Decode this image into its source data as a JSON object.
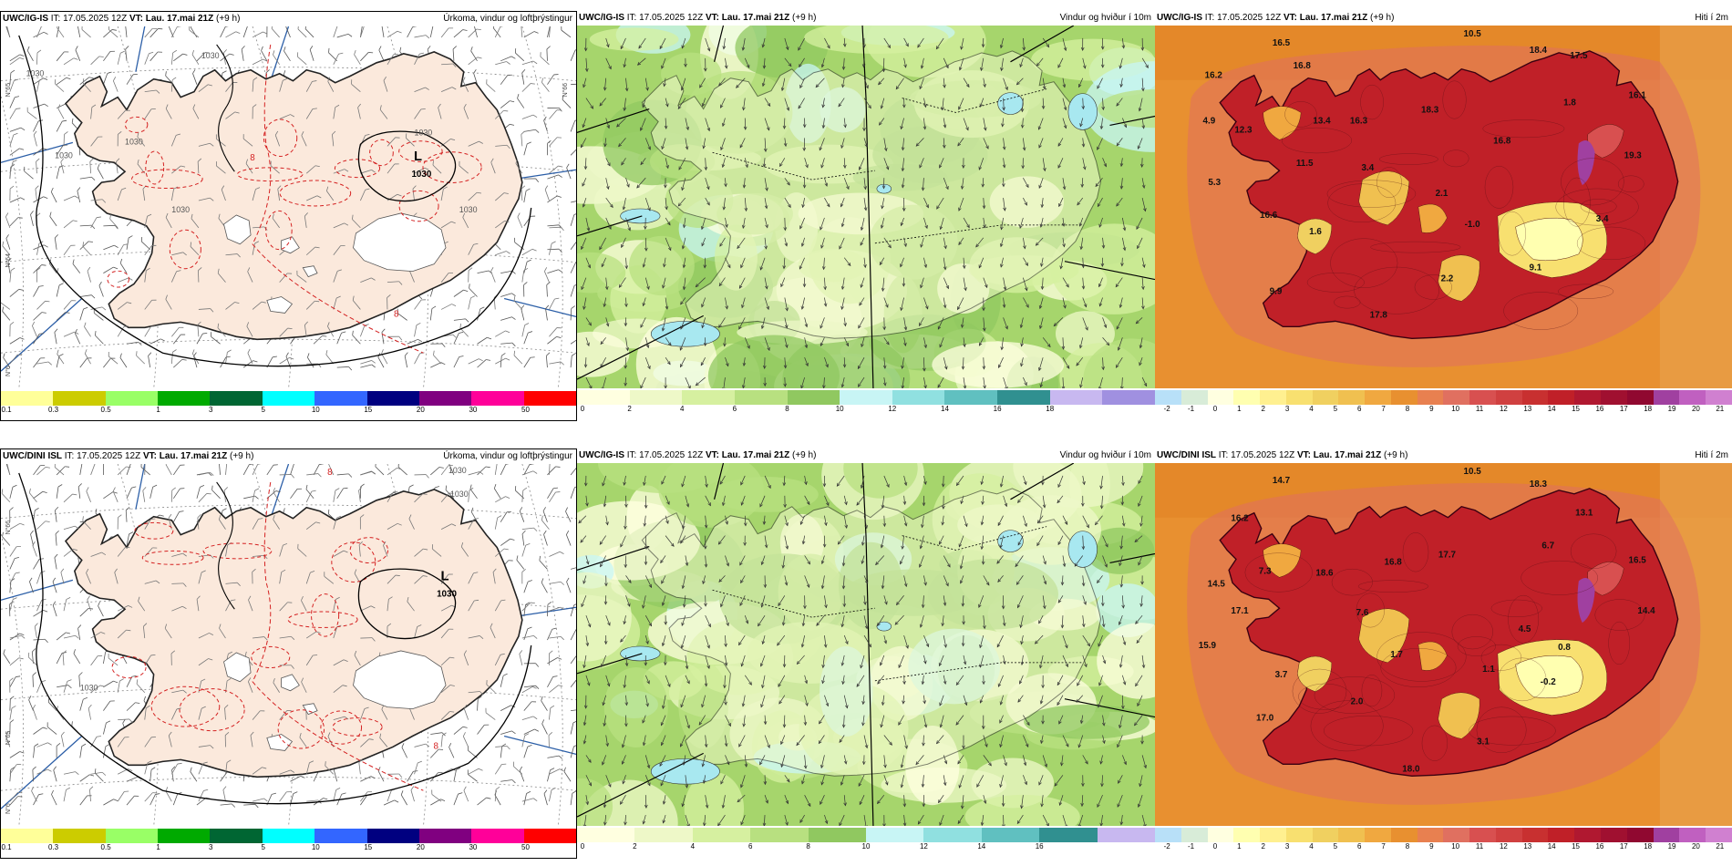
{
  "rows": [
    {
      "model": "UWC/IG-IS",
      "panels": [
        {
          "model": "UWC/IG-IS",
          "it_label": "IT:",
          "it_value": "17.05.2025 12Z",
          "vt_label": "VT:",
          "vt_value": "Lau. 17.mai 21Z",
          "lead": "(+9 h)",
          "field": "Úrkoma, vindur og loftþrýstingur",
          "type": "precip",
          "low_label": "L",
          "low_value": "1030",
          "isobar_labels": [
            "1030",
            "1030",
            "1030",
            "1030",
            "1030",
            "1030",
            "1030"
          ],
          "red_labels": [
            "8",
            "8"
          ],
          "lat_labels": [
            "N°65",
            "N°64",
            "N°66",
            "N°6"
          ],
          "colorbar": {
            "colors": [
              "#ffff99",
              "#cccc00",
              "#99ff66",
              "#00aa00",
              "#006633",
              "#00ffff",
              "#3366ff",
              "#000080",
              "#800080",
              "#ff0099",
              "#ff0000"
            ],
            "ticks": [
              "0.1",
              "0.3",
              "0.5",
              "1",
              "3",
              "5",
              "10",
              "15",
              "20",
              "30",
              "50"
            ]
          }
        },
        {
          "model": "UWC/IG-IS",
          "it_label": "IT:",
          "it_value": "17.05.2025 12Z",
          "vt_label": "VT:",
          "vt_value": "Lau. 17.mai 21Z",
          "lead": "(+9 h)",
          "field": "Vindur og hviður í 10m",
          "type": "wind",
          "colorbar": {
            "colors": [
              "#ffffe0",
              "#eef8c8",
              "#d6f0a0",
              "#b8e080",
              "#90c860",
              "#c8f5f5",
              "#90e0e0",
              "#60c0c0",
              "#309090",
              "#c8b8f0",
              "#a090e0"
            ],
            "ticks": [
              "0",
              "2",
              "4",
              "6",
              "8",
              "10",
              "12",
              "14",
              "16",
              "18"
            ]
          }
        },
        {
          "model": "UWC/IG-IS",
          "it_label": "IT:",
          "it_value": "17.05.2025 12Z",
          "vt_label": "VT:",
          "vt_value": "Lau. 17.mai 21Z",
          "lead": "(+9 h)",
          "field": "Hiti í 2m",
          "type": "temp",
          "temps": [
            "10.5",
            "18.4",
            "17.5",
            "16.5",
            "16.8",
            "16.2",
            "4.9",
            "12.3",
            "13.4",
            "16.3",
            "18.3",
            "1.8",
            "16.1",
            "16.8",
            "19.3",
            "11.5",
            "3.4",
            "2.1",
            "5.3",
            "16.6",
            "1.6",
            "-1.0",
            "3.4",
            "9.1",
            "2.2",
            "9.9",
            "17.8"
          ],
          "colorbar": {
            "colors": [
              "#b8e0f8",
              "#d8ecd8",
              "#ffffe0",
              "#ffffb0",
              "#fff090",
              "#f8e070",
              "#f0d060",
              "#f0c050",
              "#f0a840",
              "#e89030",
              "#e88050",
              "#e07060",
              "#d85050",
              "#d04040",
              "#c83030",
              "#c02028",
              "#b01830",
              "#a01030",
              "#900830",
              "#a040a0",
              "#c060c0",
              "#d080d0"
            ],
            "ticks": [
              "-2",
              "-1",
              "0",
              "1",
              "2",
              "3",
              "4",
              "5",
              "6",
              "7",
              "8",
              "9",
              "10",
              "11",
              "12",
              "13",
              "14",
              "15",
              "16",
              "17",
              "18",
              "19",
              "20",
              "21"
            ]
          }
        }
      ]
    },
    {
      "model": "UWC/DINI ISL",
      "panels": [
        {
          "model": "UWC/DINI ISL",
          "it_label": "IT:",
          "it_value": "17.05.2025 12Z",
          "vt_label": "VT:",
          "vt_value": "Lau. 17.mai 21Z",
          "lead": "(+9 h)",
          "field": "Úrkoma, vindur og loftþrýstingur",
          "type": "precip",
          "low_label": "L",
          "low_value": "1030",
          "isobar_labels": [
            "1030",
            "1030",
            "1030"
          ],
          "red_labels": [
            "8",
            "8"
          ],
          "lat_labels": [
            "N°66",
            "N°65",
            "N°6"
          ],
          "colorbar": {
            "colors": [
              "#ffff99",
              "#cccc00",
              "#99ff66",
              "#00aa00",
              "#006633",
              "#00ffff",
              "#3366ff",
              "#000080",
              "#800080",
              "#ff0099",
              "#ff0000"
            ],
            "ticks": [
              "0.1",
              "0.3",
              "0.5",
              "1",
              "3",
              "5",
              "10",
              "15",
              "20",
              "30",
              "50"
            ]
          }
        },
        {
          "model": "UWC/IG-IS",
          "it_label": "IT:",
          "it_value": "17.05.2025 12Z",
          "vt_label": "VT:",
          "vt_value": "Lau. 17.mai 21Z",
          "lead": "(+9 h)",
          "field": "Vindur og hviður í 10m",
          "type": "wind",
          "colorbar": {
            "colors": [
              "#ffffe0",
              "#eef8c8",
              "#d6f0a0",
              "#b8e080",
              "#90c860",
              "#c8f5f5",
              "#90e0e0",
              "#60c0c0",
              "#309090",
              "#c8b8f0"
            ],
            "ticks": [
              "0",
              "2",
              "4",
              "6",
              "8",
              "10",
              "12",
              "14",
              "16"
            ]
          }
        },
        {
          "model": "UWC/DINI ISL",
          "it_label": "IT:",
          "it_value": "17.05.2025 12Z",
          "vt_label": "VT:",
          "vt_value": "Lau. 17.mai 21Z",
          "lead": "(+9 h)",
          "field": "Hiti í 2m",
          "type": "temp",
          "temps": [
            "10.5",
            "18.3",
            "13.1",
            "14.7",
            "16.2",
            "6.7",
            "16.5",
            "14.5",
            "7.3",
            "18.6",
            "16.8",
            "17.7",
            "15.9",
            "17.1",
            "7.6",
            "4.5",
            "14.4",
            "1.7",
            "0.8",
            "3.7",
            "1.1",
            "-0.2",
            "2.0",
            "17.0",
            "3.1",
            "18.0"
          ],
          "colorbar": {
            "colors": [
              "#b8e0f8",
              "#d8ecd8",
              "#ffffe0",
              "#ffffb0",
              "#fff090",
              "#f8e070",
              "#f0d060",
              "#f0c050",
              "#f0a840",
              "#e89030",
              "#e88050",
              "#e07060",
              "#d85050",
              "#d04040",
              "#c83030",
              "#c02028",
              "#b01830",
              "#a01030",
              "#900830",
              "#a040a0",
              "#c060c0",
              "#d080d0"
            ],
            "ticks": [
              "-2",
              "-1",
              "0",
              "1",
              "2",
              "3",
              "4",
              "5",
              "6",
              "7",
              "8",
              "9",
              "10",
              "11",
              "12",
              "13",
              "14",
              "15",
              "16",
              "17",
              "18",
              "19",
              "20",
              "21"
            ]
          }
        }
      ]
    }
  ]
}
